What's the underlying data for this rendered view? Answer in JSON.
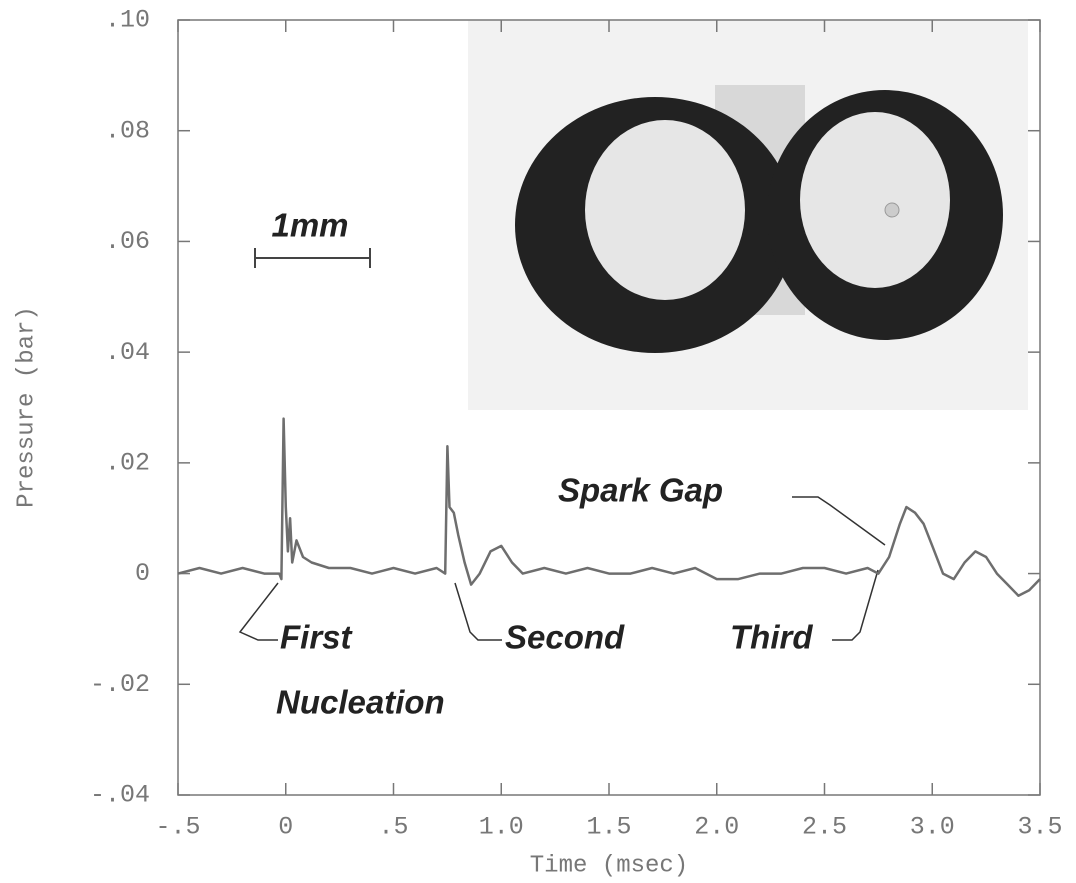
{
  "chart_data": {
    "type": "line",
    "x_label": "Time (msec)",
    "y_label": "Pressure (bar)",
    "x": [
      -0.5,
      -0.4,
      -0.3,
      -0.2,
      -0.1,
      -0.03,
      -0.02,
      -0.01,
      0,
      0.01,
      0.02,
      0.03,
      0.05,
      0.08,
      0.12,
      0.2,
      0.3,
      0.4,
      0.5,
      0.6,
      0.7,
      0.74,
      0.75,
      0.76,
      0.78,
      0.8,
      0.83,
      0.86,
      0.9,
      0.95,
      1.0,
      1.05,
      1.1,
      1.2,
      1.3,
      1.4,
      1.5,
      1.6,
      1.7,
      1.8,
      1.9,
      2.0,
      2.1,
      2.2,
      2.3,
      2.4,
      2.5,
      2.6,
      2.7,
      2.75,
      2.8,
      2.85,
      2.88,
      2.92,
      2.96,
      3.0,
      3.05,
      3.1,
      3.15,
      3.2,
      3.25,
      3.3,
      3.35,
      3.4,
      3.45,
      3.5
    ],
    "series": [
      {
        "color": "#6e6e6e",
        "values": [
          0,
          0.001,
          0,
          0.001,
          0,
          0,
          -0.001,
          0.028,
          0.012,
          0.004,
          0.01,
          0.002,
          0.006,
          0.003,
          0.002,
          0.001,
          0.001,
          0,
          0.001,
          0,
          0.001,
          0,
          0.023,
          0.012,
          0.011,
          0.007,
          0.002,
          -0.002,
          0,
          0.004,
          0.005,
          0.002,
          0,
          0.001,
          0,
          0.001,
          0,
          0,
          0.001,
          0,
          0.001,
          -0.001,
          -0.001,
          0,
          0,
          0.001,
          0.001,
          0,
          0.001,
          0,
          0.003,
          0.009,
          0.012,
          0.011,
          0.009,
          0.005,
          0,
          -0.001,
          0.002,
          0.004,
          0.003,
          0,
          -0.002,
          -0.004,
          -0.003,
          -0.001
        ]
      }
    ],
    "xlim": [
      -0.5,
      3.5
    ],
    "xticks": [
      {
        "value": -0.5,
        "label": "-.5"
      },
      0,
      {
        "value": 0.5,
        "label": ".5"
      },
      {
        "value": 1,
        "label": "1.0"
      },
      {
        "value": 1.5,
        "label": "1.5"
      },
      {
        "value": 2,
        "label": "2.0"
      },
      {
        "value": 2.5,
        "label": "2.5"
      },
      {
        "value": 3,
        "label": "3.0"
      },
      {
        "value": 3.5,
        "label": "3.5"
      }
    ],
    "ylim": [
      -0.04,
      0.1
    ],
    "yticks": [
      {
        "value": -0.04,
        "label": "-.04"
      },
      {
        "value": -0.02,
        "label": "-.02"
      },
      0,
      {
        "value": 0.02,
        "label": ".02"
      },
      {
        "value": 0.04,
        "label": ".04"
      },
      {
        "value": 0.06,
        "label": ".06"
      },
      {
        "value": 0.08,
        "label": ".08"
      },
      {
        "value": 0.1,
        "label": ".10"
      }
    ],
    "annotations": [
      "1mm",
      "First",
      "Nucleation",
      "Second",
      "Third",
      "Spark Gap"
    ]
  }
}
